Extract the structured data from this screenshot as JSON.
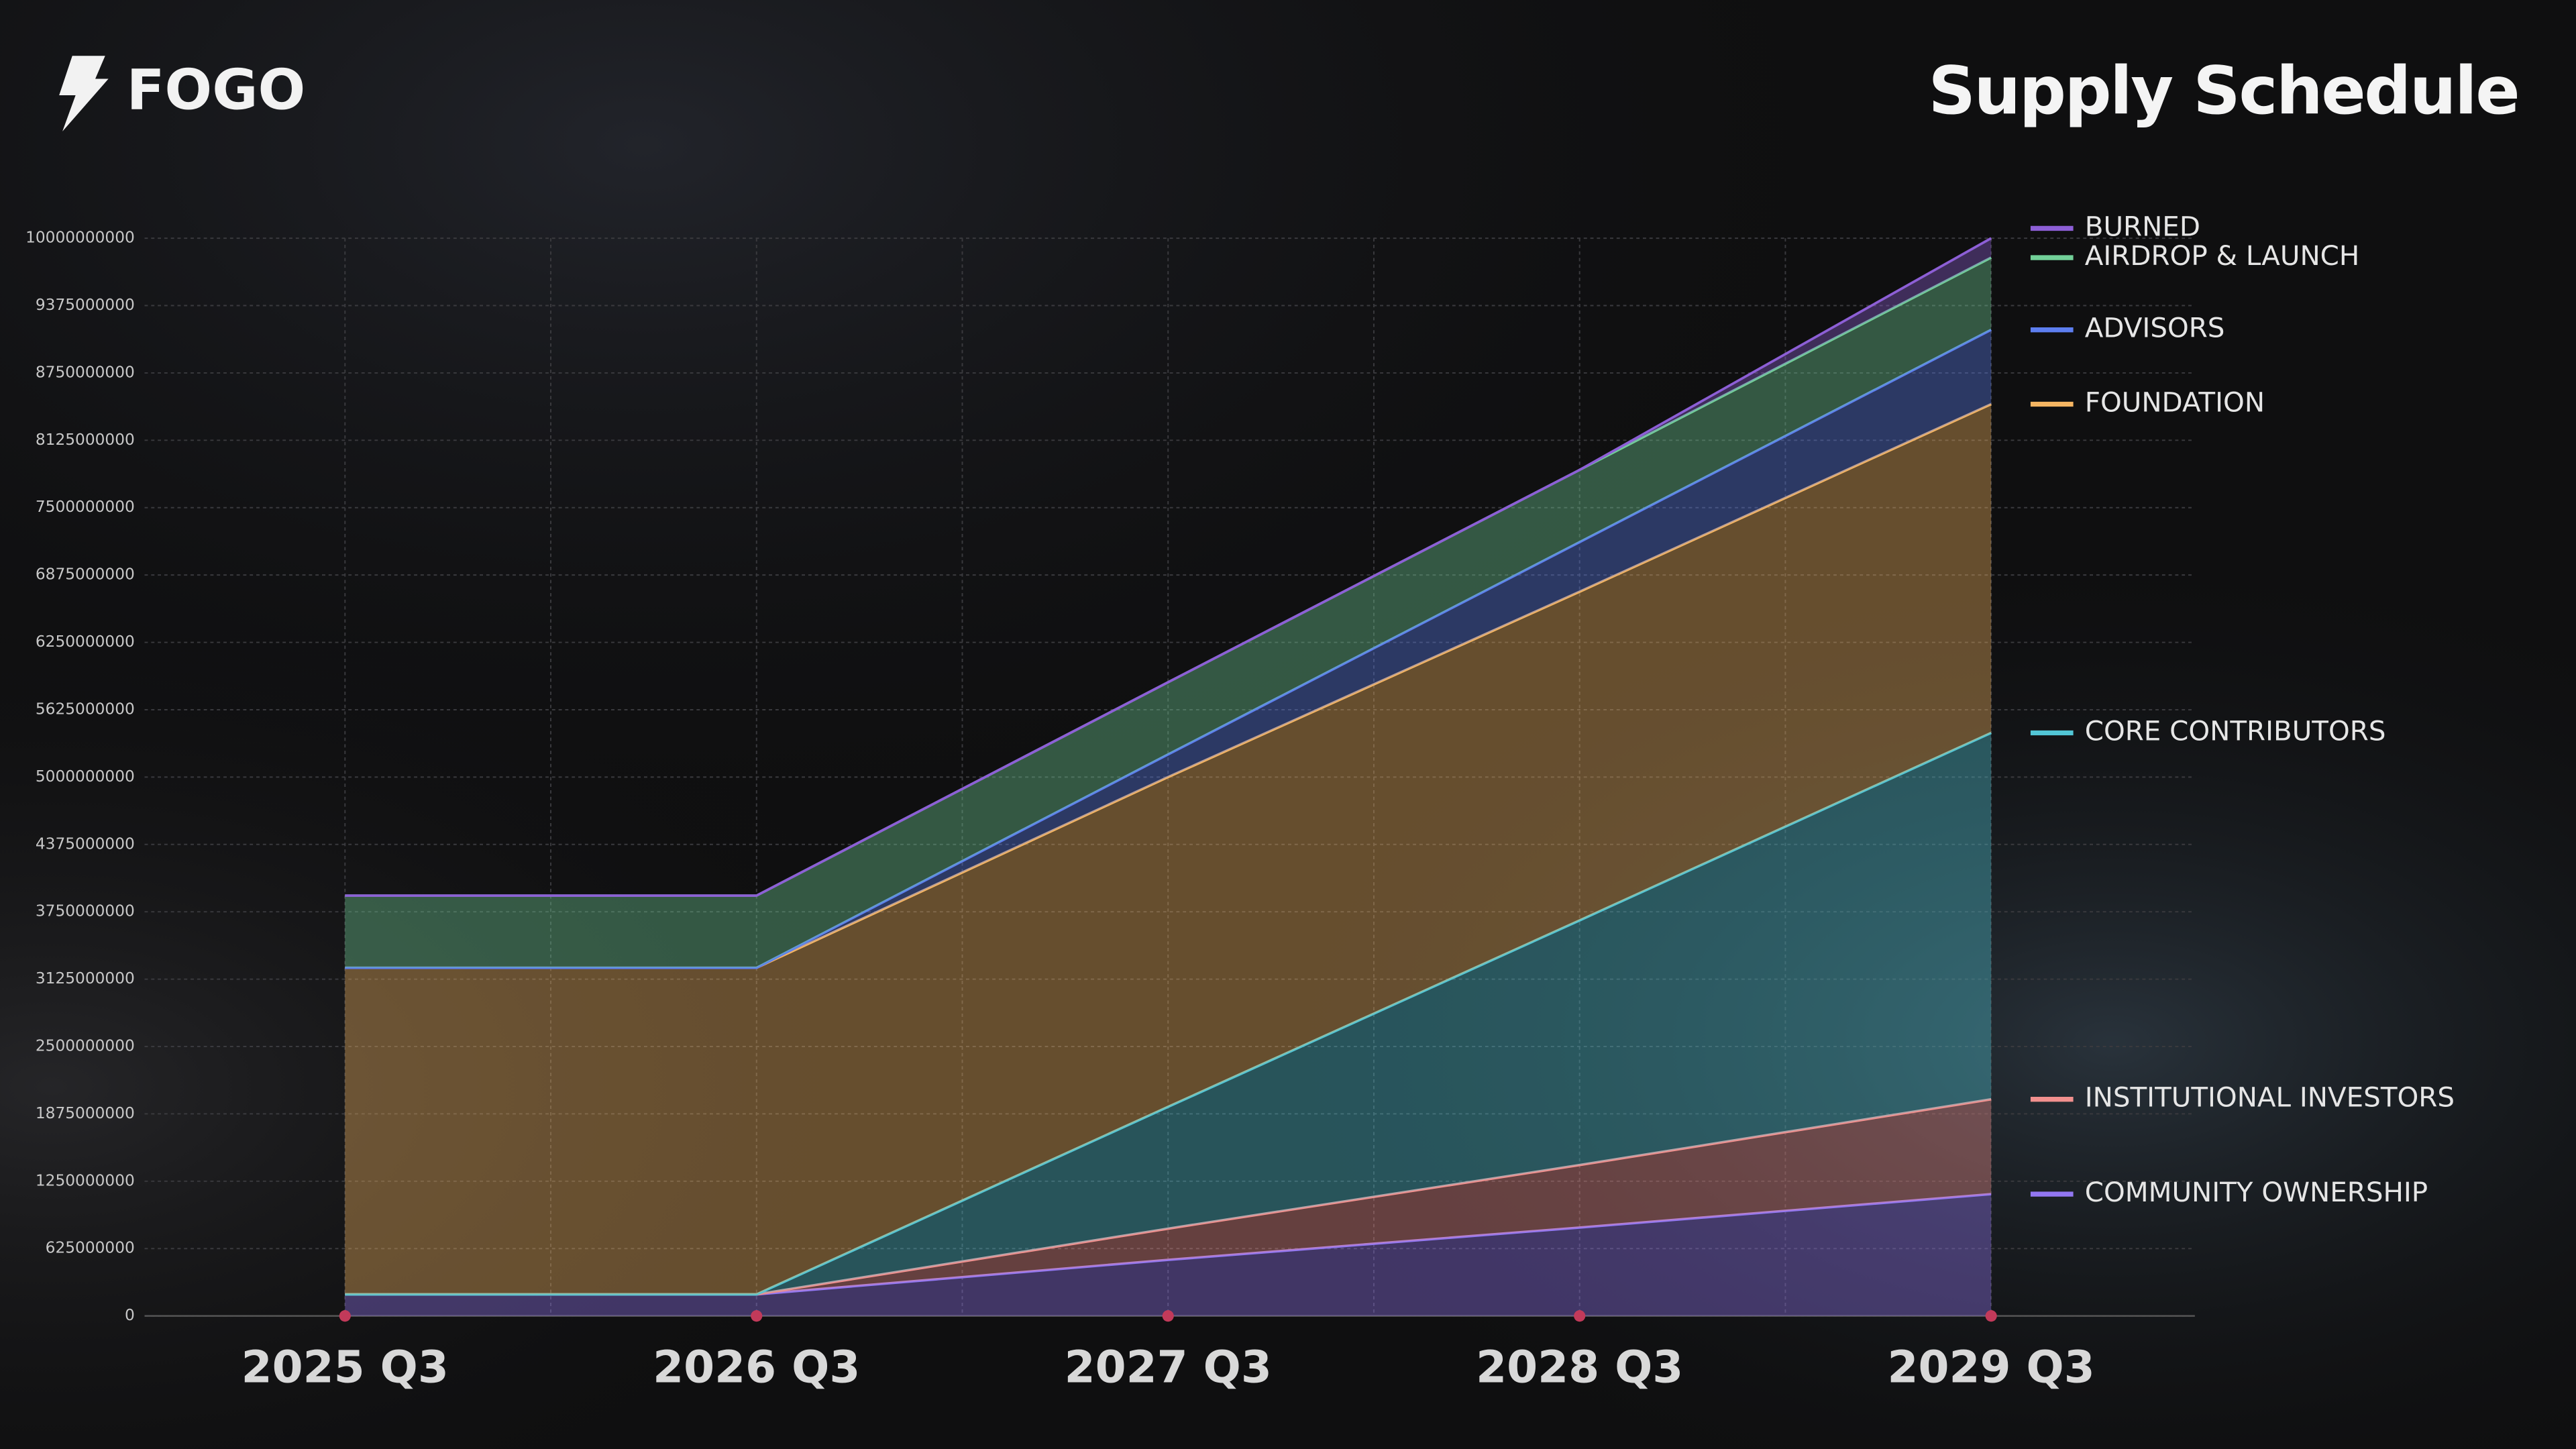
{
  "brand": "FOGO",
  "chart_data": {
    "type": "stacked_area",
    "title": "Supply Schedule",
    "categories": [
      "2025 Q3",
      "2026 Q3",
      "2027 Q3",
      "2028 Q3",
      "2029 Q3"
    ],
    "series": [
      {
        "name": "COMMUNITY OWNERSHIP",
        "color": "#9277f2",
        "values": [
          200000000,
          200000000,
          520000000,
          820000000,
          1130000000
        ]
      },
      {
        "name": "INSTITUTIONAL INVESTORS",
        "color": "#f2908e",
        "values": [
          0,
          0,
          290000000,
          580000000,
          880000000
        ]
      },
      {
        "name": "CORE CONTRIBUTORS",
        "color": "#52c6d6",
        "values": [
          0,
          0,
          1130000000,
          2270000000,
          3400000000
        ]
      },
      {
        "name": "FOUNDATION",
        "color": "#f5b562",
        "values": [
          3030000000,
          3030000000,
          3060000000,
          3050000000,
          3050000000
        ]
      },
      {
        "name": "ADVISORS",
        "color": "#5d7ef0",
        "values": [
          0,
          0,
          210000000,
          460000000,
          690000000
        ]
      },
      {
        "name": "AIRDROP & LAUNCH",
        "color": "#72d098",
        "values": [
          670000000,
          670000000,
          670000000,
          670000000,
          670000000
        ]
      },
      {
        "name": "BURNED",
        "color": "#8d5fd6",
        "values": [
          0,
          0,
          0,
          0,
          180000000
        ]
      }
    ],
    "ylim": [
      0,
      10000000000
    ],
    "yticks": [
      0,
      625000000,
      1250000000,
      1875000000,
      2500000000,
      3125000000,
      3750000000,
      4375000000,
      5000000000,
      5625000000,
      6250000000,
      6875000000,
      7500000000,
      8125000000,
      8750000000,
      9375000000,
      10000000000
    ],
    "grid": true,
    "legend": "right"
  }
}
